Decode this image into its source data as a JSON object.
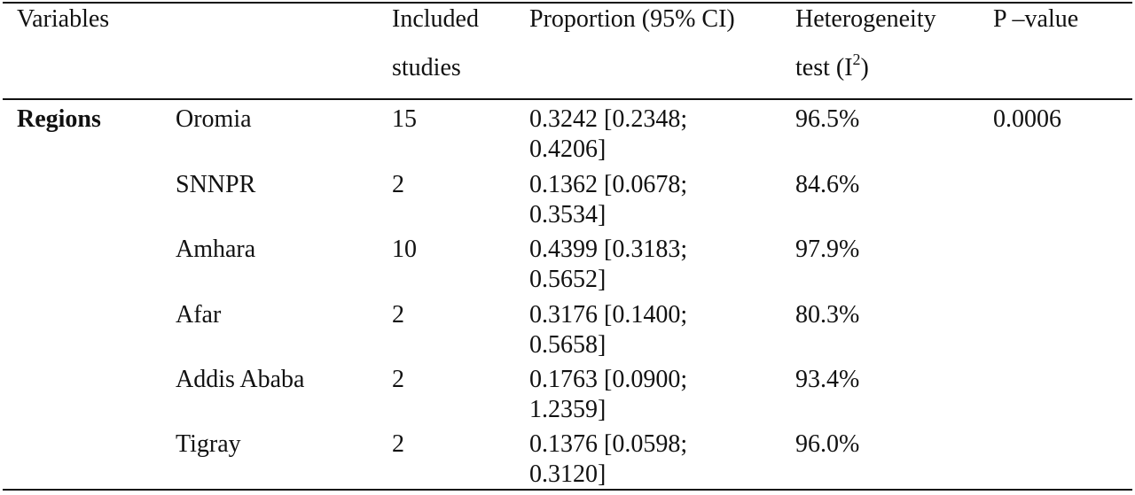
{
  "header": {
    "variables": "Variables",
    "included_line1": "Included",
    "included_line2": "studies",
    "proportion": "Proportion (95% CI)",
    "heterogeneity_line1": "Heterogeneity",
    "heterogeneity_line2_prefix": "test (I",
    "heterogeneity_sup": "2",
    "heterogeneity_line2_suffix": ")",
    "pvalue": "P –value"
  },
  "group_label": "Regions",
  "rows": [
    {
      "region": "Oromia",
      "studies": "15",
      "ci_line1": "0.3242 [0.2348;",
      "ci_line2": "0.4206]",
      "i2": "96.5%",
      "pvalue": "0.0006"
    },
    {
      "region": "SNNPR",
      "studies": "2",
      "ci_line1": "0.1362 [0.0678;",
      "ci_line2": "0.3534]",
      "i2": "84.6%",
      "pvalue": ""
    },
    {
      "region": "Amhara",
      "studies": "10",
      "ci_line1": "0.4399 [0.3183;",
      "ci_line2": "0.5652]",
      "i2": "97.9%",
      "pvalue": ""
    },
    {
      "region": "Afar",
      "studies": "2",
      "ci_line1": "0.3176 [0.1400;",
      "ci_line2": "0.5658]",
      "i2": "80.3%",
      "pvalue": ""
    },
    {
      "region": "Addis Ababa",
      "studies": "2",
      "ci_line1": "0.1763 [0.0900;",
      "ci_line2": "1.2359]",
      "i2": "93.4%",
      "pvalue": ""
    },
    {
      "region": "Tigray",
      "studies": "2",
      "ci_line1": "0.1376 [0.0598;",
      "ci_line2": "0.3120]",
      "i2": "96.0%",
      "pvalue": ""
    }
  ]
}
